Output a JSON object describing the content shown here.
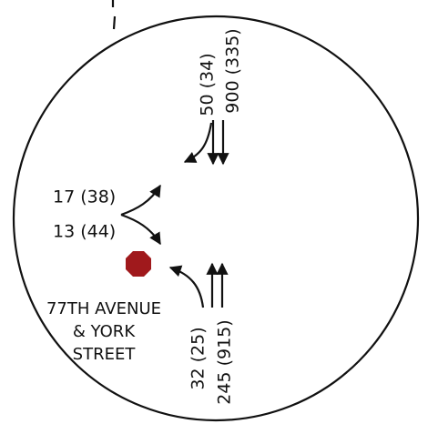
{
  "intersection": {
    "name_lines": [
      "77TH AVENUE",
      "& YORK",
      "STREET"
    ]
  },
  "approaches": {
    "north": {
      "labels": [
        "50 (34)",
        "900 (335)"
      ]
    },
    "west": {
      "labels": [
        "17 (38)",
        "13 (44)"
      ]
    },
    "south": {
      "labels": [
        "32 (25)",
        "245 (915)"
      ]
    }
  }
}
